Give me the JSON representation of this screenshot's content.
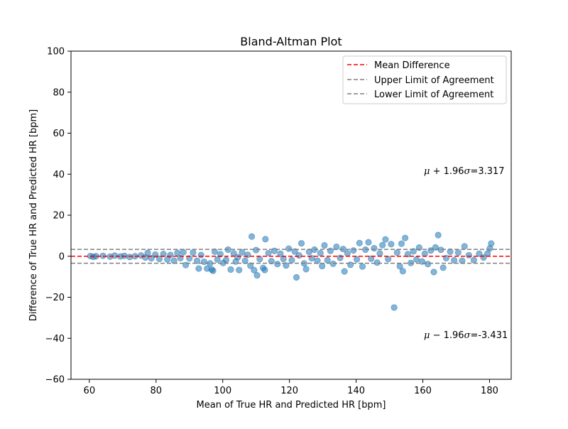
{
  "chart_data": {
    "type": "scatter",
    "title": "Bland-Altman Plot",
    "xlabel": "Mean of True HR and Predicted HR [bpm]",
    "ylabel": "Difference of True HR and Predicted HR [bpm]",
    "xlim": [
      54.5,
      186.5
    ],
    "ylim": [
      -60,
      100
    ],
    "x_ticks": [
      60,
      80,
      100,
      120,
      140,
      160,
      180
    ],
    "y_ticks": [
      -60,
      -40,
      -20,
      0,
      20,
      40,
      60,
      80,
      100
    ],
    "x_tick_labels": [
      "60",
      "80",
      "100",
      "120",
      "140",
      "160",
      "180"
    ],
    "y_tick_labels": [
      "−60",
      "−40",
      "−20",
      "0",
      "20",
      "40",
      "60",
      "80",
      "100"
    ],
    "grid": false,
    "legend_placement": "top-right",
    "legend": [
      {
        "label": "Mean Difference",
        "color": "#ff0000",
        "style": "dashed"
      },
      {
        "label": "Upper Limit of Agreement",
        "color": "#808080",
        "style": "dashed"
      },
      {
        "label": "Lower Limit of Agreement",
        "color": "#808080",
        "style": "dashed"
      }
    ],
    "lines": {
      "mean_difference": 0.0,
      "upper_limit": 3.317,
      "lower_limit": -3.431
    },
    "annotations": {
      "upper": {
        "x": 160,
        "y": 40,
        "prefix": "μ",
        "rest": " + 1.96",
        "sigma": "σ",
        "value": "=3.317"
      },
      "lower": {
        "x": 160,
        "y": -40,
        "prefix": "μ",
        "rest": " − 1.96",
        "sigma": "σ",
        "value": "=-3.431"
      }
    },
    "point_color": "#1f77b4",
    "point_alpha": 0.55,
    "series": [
      {
        "points": [
          [
            60.3,
            0.1
          ],
          [
            61.2,
            -0.3
          ],
          [
            62.0,
            0.0
          ],
          [
            64.1,
            0.2
          ],
          [
            66.2,
            -0.2
          ],
          [
            67.6,
            0.3
          ],
          [
            69.3,
            -0.1
          ],
          [
            70.5,
            0.2
          ],
          [
            72.1,
            -0.4
          ],
          [
            73.7,
            0.0
          ],
          [
            75.5,
            0.4
          ],
          [
            76.8,
            -0.6
          ],
          [
            77.5,
            1.6
          ],
          [
            78.6,
            -1.0
          ],
          [
            79.8,
            0.8
          ],
          [
            81.0,
            -1.3
          ],
          [
            82.2,
            1.1
          ],
          [
            83.4,
            -1.6
          ],
          [
            84.3,
            0.6
          ],
          [
            85.4,
            -2.2
          ],
          [
            86.4,
            1.6
          ],
          [
            87.3,
            -0.9
          ],
          [
            88.2,
            2.0
          ],
          [
            88.9,
            -4.3
          ],
          [
            90.0,
            -1.1
          ],
          [
            91.1,
            1.8
          ],
          [
            92.3,
            -2.2
          ],
          [
            92.8,
            -6.0
          ],
          [
            93.5,
            0.6
          ],
          [
            94.4,
            -2.7
          ],
          [
            95.3,
            -6.0
          ],
          [
            96.2,
            -3.5
          ],
          [
            96.7,
            -6.5
          ],
          [
            97.1,
            -7.1
          ],
          [
            97.6,
            2.2
          ],
          [
            98.4,
            -1.6
          ],
          [
            99.3,
            1.0
          ],
          [
            100.1,
            -3.3
          ],
          [
            101.0,
            -1.8
          ],
          [
            101.6,
            3.2
          ],
          [
            102.4,
            -6.5
          ],
          [
            103.3,
            1.4
          ],
          [
            103.9,
            -2.6
          ],
          [
            104.5,
            -0.5
          ],
          [
            104.9,
            -6.7
          ],
          [
            105.8,
            1.9
          ],
          [
            106.7,
            -2.2
          ],
          [
            107.5,
            0.7
          ],
          [
            108.3,
            -4.6
          ],
          [
            108.7,
            9.6
          ],
          [
            109.4,
            -6.8
          ],
          [
            110.0,
            3.0
          ],
          [
            110.3,
            -9.3
          ],
          [
            111.1,
            -1.4
          ],
          [
            112.1,
            -5.7
          ],
          [
            112.6,
            -6.7
          ],
          [
            112.8,
            8.3
          ],
          [
            113.7,
            1.5
          ],
          [
            114.6,
            -2.4
          ],
          [
            115.5,
            2.6
          ],
          [
            116.4,
            -3.8
          ],
          [
            117.3,
            1.2
          ],
          [
            118.2,
            -1.3
          ],
          [
            119.0,
            -4.5
          ],
          [
            119.8,
            3.7
          ],
          [
            120.7,
            -1.9
          ],
          [
            121.6,
            2.3
          ],
          [
            122.1,
            -10.3
          ],
          [
            122.9,
            0.4
          ],
          [
            123.6,
            6.3
          ],
          [
            124.4,
            -3.5
          ],
          [
            125.0,
            -6.3
          ],
          [
            125.9,
            2.1
          ],
          [
            126.7,
            -1.0
          ],
          [
            127.5,
            3.2
          ],
          [
            128.4,
            -2.2
          ],
          [
            129.3,
            1.5
          ],
          [
            129.8,
            -4.8
          ],
          [
            130.5,
            5.3
          ],
          [
            131.4,
            -1.9
          ],
          [
            132.3,
            2.6
          ],
          [
            133.1,
            -3.7
          ],
          [
            134.1,
            4.6
          ],
          [
            135.2,
            -0.8
          ],
          [
            136.1,
            3.5
          ],
          [
            136.5,
            -7.4
          ],
          [
            137.4,
            1.4
          ],
          [
            138.3,
            -4.2
          ],
          [
            139.2,
            2.8
          ],
          [
            140.2,
            -1.5
          ],
          [
            141.0,
            6.4
          ],
          [
            141.9,
            -5.0
          ],
          [
            142.8,
            3.2
          ],
          [
            143.7,
            6.8
          ],
          [
            144.5,
            -1.2
          ],
          [
            145.4,
            3.9
          ],
          [
            146.3,
            -3.1
          ],
          [
            147.1,
            1.4
          ],
          [
            147.9,
            5.4
          ],
          [
            148.8,
            8.2
          ],
          [
            149.6,
            -1.4
          ],
          [
            150.5,
            5.9
          ],
          [
            151.4,
            -25.0
          ],
          [
            152.3,
            1.8
          ],
          [
            153.1,
            -4.9
          ],
          [
            153.6,
            6.1
          ],
          [
            154.0,
            -7.3
          ],
          [
            154.7,
            8.9
          ],
          [
            155.5,
            1.0
          ],
          [
            156.4,
            -3.3
          ],
          [
            157.2,
            2.4
          ],
          [
            158.1,
            -1.6
          ],
          [
            158.9,
            4.2
          ],
          [
            159.8,
            -2.6
          ],
          [
            160.6,
            1.2
          ],
          [
            161.5,
            -3.8
          ],
          [
            162.4,
            2.8
          ],
          [
            163.3,
            -7.7
          ],
          [
            163.8,
            4.3
          ],
          [
            164.6,
            10.3
          ],
          [
            165.4,
            3.1
          ],
          [
            166.1,
            -5.6
          ],
          [
            167.0,
            -0.9
          ],
          [
            168.2,
            2.2
          ],
          [
            169.4,
            -2.0
          ],
          [
            170.6,
            1.8
          ],
          [
            171.8,
            -2.2
          ],
          [
            172.5,
            4.8
          ],
          [
            173.8,
            0.5
          ],
          [
            175.3,
            -1.9
          ],
          [
            176.9,
            1.2
          ],
          [
            178.2,
            -0.6
          ],
          [
            179.4,
            1.3
          ],
          [
            180.5,
            6.2
          ],
          [
            180.1,
            3.8
          ]
        ]
      }
    ]
  }
}
